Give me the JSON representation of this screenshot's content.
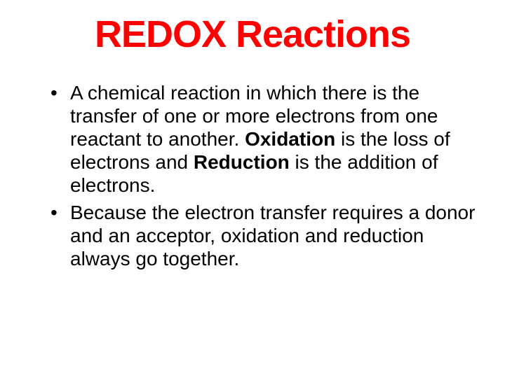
{
  "title": {
    "text": "REDOX Reactions",
    "color": "#ff0000",
    "fontsize": 54
  },
  "body": {
    "color": "#000000",
    "fontsize": 28,
    "line_height": 1.18
  },
  "bullets": [
    {
      "segments": [
        {
          "text": "A chemical reaction in which there is the transfer of one or more electrons from one reactant to another.  ",
          "bold": false
        },
        {
          "text": "Oxidation",
          "bold": true
        },
        {
          "text": " is the loss of electrons and ",
          "bold": false
        },
        {
          "text": "Reduction",
          "bold": true
        },
        {
          "text": " is the addition of electrons.",
          "bold": false
        }
      ]
    },
    {
      "segments": [
        {
          "text": "Because the electron transfer requires a donor and an acceptor, oxidation and reduction always go together.",
          "bold": false
        }
      ]
    }
  ]
}
